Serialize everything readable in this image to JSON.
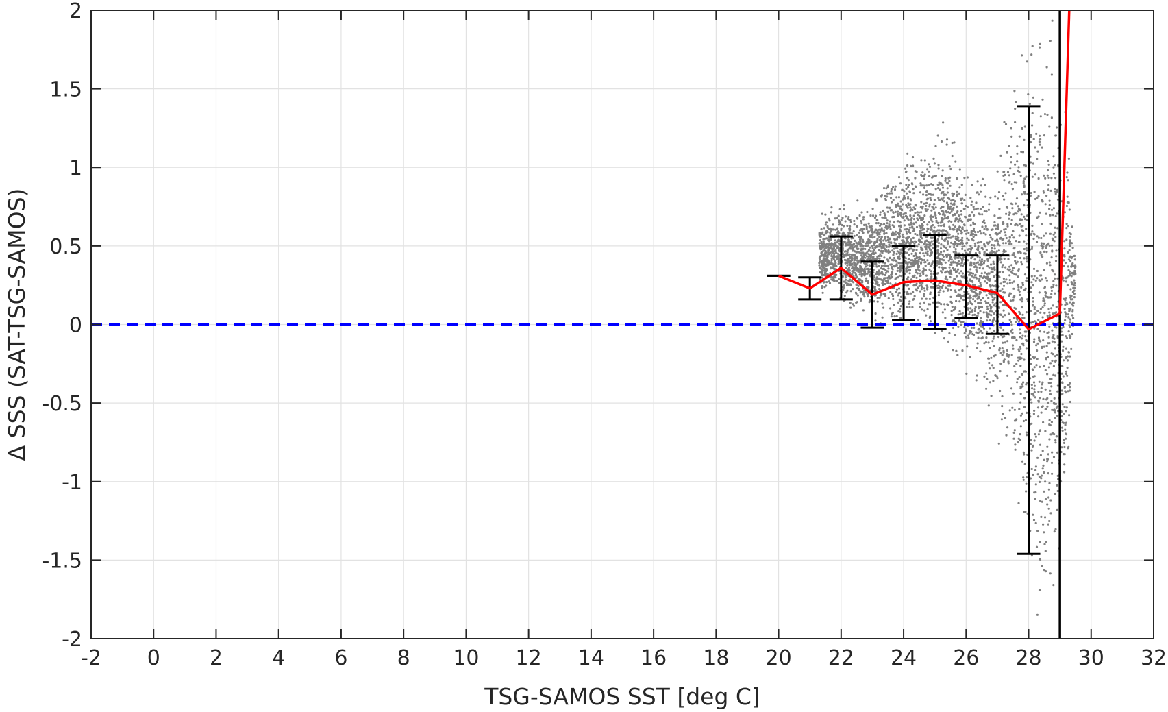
{
  "chart_data": {
    "type": "scatter",
    "title": "",
    "xlabel": "TSG-SAMOS SST [deg C]",
    "ylabel": "Δ SSS (SAT-TSG-SAMOS)",
    "xlim": [
      -2,
      32
    ],
    "ylim": [
      -2,
      2
    ],
    "xticks": [
      -2,
      0,
      2,
      4,
      6,
      8,
      10,
      12,
      14,
      16,
      18,
      20,
      22,
      24,
      26,
      28,
      30,
      32
    ],
    "xtick_labels": [
      "-2",
      "0",
      "2",
      "4",
      "6",
      "8",
      "10",
      "12",
      "14",
      "16",
      "18",
      "20",
      "22",
      "24",
      "26",
      "28",
      "30",
      "32"
    ],
    "yticks": [
      -2,
      -1.5,
      -1,
      -0.5,
      0,
      0.5,
      1,
      1.5,
      2
    ],
    "ytick_labels": [
      "-2",
      "-1.5",
      "-1",
      "-0.5",
      "0",
      "0.5",
      "1",
      "1.5",
      "2"
    ],
    "grid": true,
    "legend": "none",
    "colors": {
      "scatter": "#808080",
      "mean_line": "#ff0000",
      "error_bars": "#000000",
      "zero_line": "#0000ff",
      "vertical_line": "#000000",
      "axes": "#262626",
      "grid": "#e2e2e2"
    },
    "scatter_envelope": {
      "description_values": "approximate spread of gray scatter points (delta SSS) by SST",
      "x": [
        21.3,
        21.6,
        22.0,
        22.4,
        22.8,
        23.2,
        23.6,
        24.0,
        24.4,
        24.8,
        25.2,
        25.6,
        26.0,
        26.4,
        26.8,
        27.2,
        27.6,
        28.0,
        28.4,
        28.8,
        29.2,
        29.5
      ],
      "y_low": [
        0.2,
        0.15,
        0.1,
        0.05,
        0.0,
        -0.05,
        -0.05,
        -0.1,
        -0.1,
        -0.1,
        -0.15,
        -0.2,
        -0.3,
        -0.4,
        -0.6,
        -0.8,
        -1.2,
        -1.8,
        -2.0,
        -2.0,
        -1.5,
        0.3
      ],
      "y_high": [
        0.7,
        0.75,
        0.8,
        0.75,
        0.8,
        0.9,
        1.0,
        1.1,
        1.15,
        1.2,
        1.25,
        1.2,
        1.0,
        1.0,
        1.1,
        1.3,
        2.0,
        2.0,
        2.0,
        2.0,
        1.5,
        0.4
      ]
    },
    "mean_line": {
      "x": [
        20,
        21,
        22,
        23,
        24,
        25,
        26,
        27,
        28,
        29,
        29.3
      ],
      "y": [
        0.31,
        0.23,
        0.36,
        0.19,
        0.27,
        0.28,
        0.25,
        0.2,
        -0.03,
        0.07,
        2.0
      ]
    },
    "error_bars": [
      {
        "x": 20,
        "low": 0.31,
        "high": 0.31
      },
      {
        "x": 21,
        "low": 0.16,
        "high": 0.3
      },
      {
        "x": 22,
        "low": 0.16,
        "high": 0.56
      },
      {
        "x": 23,
        "low": -0.02,
        "high": 0.4
      },
      {
        "x": 24,
        "low": 0.03,
        "high": 0.5
      },
      {
        "x": 25,
        "low": -0.03,
        "high": 0.57
      },
      {
        "x": 26,
        "low": 0.04,
        "high": 0.44
      },
      {
        "x": 27,
        "low": -0.06,
        "high": 0.44
      },
      {
        "x": 28,
        "low": -1.46,
        "high": 1.39
      }
    ],
    "zero_line_y": 0,
    "vertical_line_x": 29
  }
}
